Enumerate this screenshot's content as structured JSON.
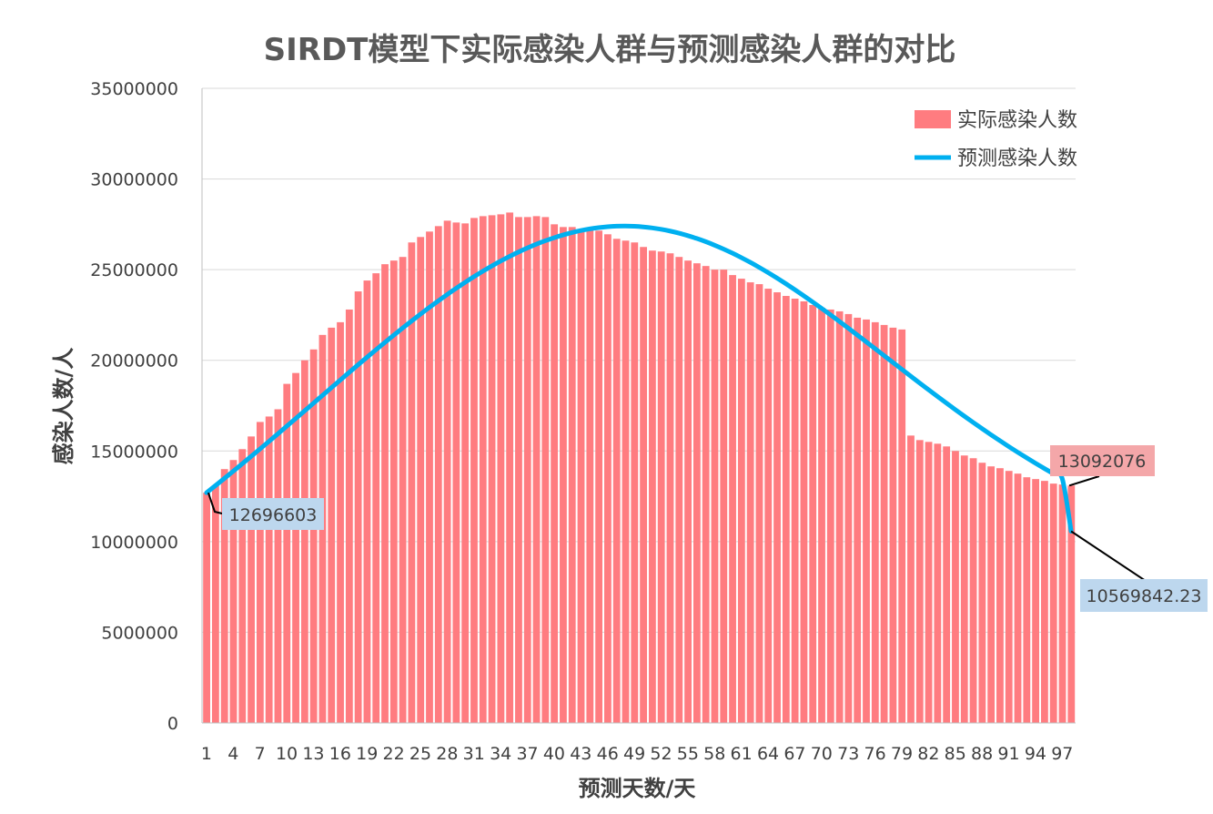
{
  "chart_data": {
    "type": "bar",
    "title": "SIRDT模型下实际感染人群与预测感染人群的对比",
    "xlabel": "预测天数/天",
    "ylabel": "感染人数/人",
    "ylim": [
      0,
      35000000
    ],
    "y_ticks": [
      0,
      5000000,
      10000000,
      15000000,
      20000000,
      25000000,
      30000000,
      35000000
    ],
    "y_tick_labels": [
      "0",
      "5000000",
      "10000000",
      "15000000",
      "20000000",
      "25000000",
      "30000000",
      "35000000"
    ],
    "x_tick_labels": [
      "1",
      "4",
      "7",
      "10",
      "13",
      "16",
      "19",
      "22",
      "25",
      "28",
      "31",
      "34",
      "37",
      "40",
      "43",
      "46",
      "49",
      "52",
      "55",
      "58",
      "61",
      "64",
      "67",
      "70",
      "73",
      "76",
      "79",
      "82",
      "85",
      "88",
      "91",
      "94",
      "97"
    ],
    "grid": "horizontal",
    "legend_position": "top-right",
    "colors": {
      "bar": "#ff7c80",
      "line": "#00b0f0",
      "bar_label_bg": "#f4a7a9",
      "line_label_bg": "#bdd7ee",
      "grid": "#d9d9d9",
      "axis": "#bfbfbf"
    },
    "x": [
      1,
      2,
      3,
      4,
      5,
      6,
      7,
      8,
      9,
      10,
      11,
      12,
      13,
      14,
      15,
      16,
      17,
      18,
      19,
      20,
      21,
      22,
      23,
      24,
      25,
      26,
      27,
      28,
      29,
      30,
      31,
      32,
      33,
      34,
      35,
      36,
      37,
      38,
      39,
      40,
      41,
      42,
      43,
      44,
      45,
      46,
      47,
      48,
      49,
      50,
      51,
      52,
      53,
      54,
      55,
      56,
      57,
      58,
      59,
      60,
      61,
      62,
      63,
      64,
      65,
      66,
      67,
      68,
      69,
      70,
      71,
      72,
      73,
      74,
      75,
      76,
      77,
      78,
      79,
      80,
      81,
      82,
      83,
      84,
      85,
      86,
      87,
      88,
      89,
      90,
      91,
      92,
      93,
      94,
      95,
      96,
      97,
      98
    ],
    "series": [
      {
        "name": "实际感染人数",
        "type": "bar",
        "values": [
          12696603,
          13100000,
          14000000,
          14500000,
          15100000,
          15800000,
          16600000,
          16900000,
          17300000,
          18700000,
          19300000,
          20000000,
          20600000,
          21400000,
          21800000,
          22100000,
          22800000,
          23800000,
          24400000,
          24800000,
          25300000,
          25500000,
          25700000,
          26500000,
          26800000,
          27100000,
          27400000,
          27700000,
          27600000,
          27550000,
          27850000,
          27950000,
          28000000,
          28050000,
          28150000,
          27900000,
          27900000,
          27950000,
          27900000,
          27500000,
          27350000,
          27350000,
          27200000,
          27200000,
          27150000,
          26950000,
          26700000,
          26600000,
          26500000,
          26250000,
          26050000,
          26000000,
          25900000,
          25700000,
          25500000,
          25350000,
          25200000,
          25000000,
          25000000,
          24700000,
          24500000,
          24300000,
          24200000,
          23950000,
          23750000,
          23550000,
          23400000,
          23250000,
          23050000,
          22900000,
          22800000,
          22700000,
          22550000,
          22350000,
          22250000,
          22100000,
          21950000,
          21800000,
          21700000,
          15850000,
          15600000,
          15500000,
          15400000,
          15250000,
          15000000,
          14750000,
          14600000,
          14350000,
          14150000,
          14050000,
          13900000,
          13750000,
          13550000,
          13450000,
          13350000,
          13200000,
          13150000,
          13092076
        ]
      },
      {
        "name": "预测感染人数",
        "type": "line",
        "values": [
          12696603,
          13088000,
          13483000,
          13883000,
          14287000,
          14696000,
          15108000,
          15523000,
          15941000,
          16362000,
          16785000,
          17209000,
          17634000,
          18060000,
          18484000,
          18908000,
          19330000,
          19749000,
          20164000,
          20576000,
          20982000,
          21383000,
          21777000,
          22165000,
          22544000,
          22915000,
          23276000,
          23627000,
          23967000,
          24295000,
          24610000,
          24912000,
          25200000,
          25473000,
          25730000,
          25971000,
          26195000,
          26402000,
          26591000,
          26761000,
          26912000,
          27044000,
          27155000,
          27247000,
          27318000,
          27368000,
          27397000,
          27405000,
          27392000,
          27357000,
          27302000,
          27226000,
          27129000,
          27012000,
          26875000,
          26719000,
          26544000,
          26350000,
          26138000,
          25909000,
          25664000,
          25403000,
          25127000,
          24838000,
          24536000,
          24222000,
          23897000,
          23562000,
          23218000,
          22866000,
          22507000,
          22143000,
          21773000,
          21400000,
          21023000,
          20645000,
          20265000,
          19885000,
          19505000,
          19127000,
          18751000,
          18378000,
          18008000,
          17643000,
          17282000,
          16927000,
          16577000,
          16234000,
          15897000,
          15568000,
          15245000,
          14930000,
          14623000,
          14324000,
          14033000,
          13750000,
          13476000,
          10569842.23
        ]
      }
    ],
    "annotations": [
      {
        "text": "12696603",
        "series": "预测感染人数",
        "point": 1
      },
      {
        "text": "13092076",
        "series": "实际感染人数",
        "point": 98
      },
      {
        "text": "10569842.23",
        "series": "预测感染人数",
        "point": 98
      }
    ]
  }
}
